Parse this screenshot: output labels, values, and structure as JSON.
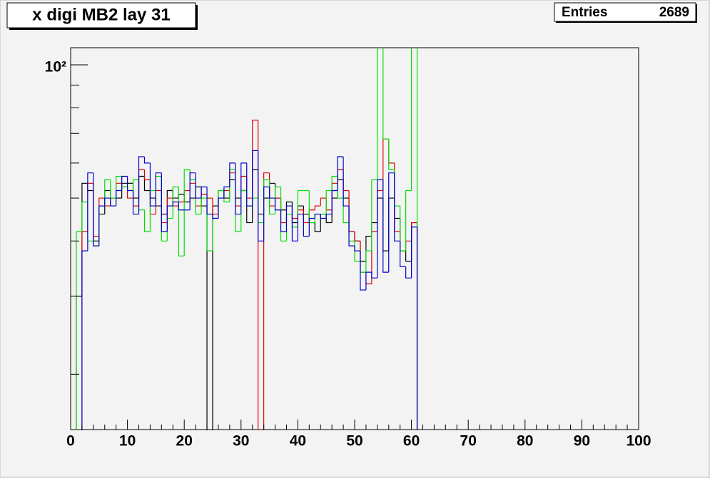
{
  "chart_data": {
    "type": "histogram",
    "title": "x digi MB2 lay 31",
    "stats_label": "Entries",
    "entries": 2689,
    "log_y": true,
    "xlim": [
      0,
      100
    ],
    "xticks": [
      0,
      10,
      20,
      30,
      40,
      50,
      60,
      70,
      80,
      90,
      100
    ],
    "xminor": [
      2,
      4,
      6,
      8,
      12,
      14,
      16,
      18,
      22,
      24,
      26,
      28,
      32,
      34,
      36,
      38,
      42,
      44,
      46,
      48,
      52,
      54,
      56,
      58,
      62,
      64,
      66,
      68,
      72,
      74,
      76,
      78,
      82,
      84,
      86,
      88,
      92,
      94,
      96,
      98
    ],
    "ylim": [
      15,
      109.3
    ],
    "yticks": [
      {
        "value": 100,
        "label": "10²"
      }
    ],
    "yminor": [
      20,
      30,
      40,
      50,
      60,
      70,
      80,
      90
    ],
    "bins": [
      0,
      1,
      2,
      3,
      4,
      5,
      6,
      7,
      8,
      9,
      10,
      11,
      12,
      13,
      14,
      15,
      16,
      17,
      18,
      19,
      20,
      21,
      22,
      23,
      24,
      25,
      26,
      27,
      28,
      29,
      30,
      31,
      32,
      33,
      34,
      35,
      36,
      37,
      38,
      39,
      40,
      41,
      42,
      43,
      44,
      45,
      46,
      47,
      48,
      49,
      50,
      51,
      52,
      53,
      54,
      55,
      56,
      57,
      58,
      59,
      60,
      61,
      62,
      63,
      64,
      65,
      66,
      67,
      68,
      69,
      70,
      71,
      72,
      73,
      74,
      75,
      76,
      77,
      78,
      79,
      80,
      81,
      82,
      83,
      84,
      85,
      86,
      87,
      88,
      89,
      90,
      91,
      92,
      93,
      94,
      95,
      96,
      97,
      98,
      99,
      100
    ],
    "series": [
      {
        "color": "#000000",
        "values": [
          0,
          30,
          54,
          52,
          40,
          46,
          52,
          50,
          50,
          54,
          54,
          50,
          56,
          52,
          50,
          48,
          46,
          52,
          50,
          51,
          49,
          50,
          53,
          48,
          0,
          48,
          52,
          50,
          55,
          50,
          52,
          44,
          58,
          46,
          50,
          54,
          50,
          47,
          49,
          44,
          48,
          46,
          44,
          42,
          46,
          44,
          50,
          55,
          50,
          42,
          40,
          36,
          41,
          44,
          50,
          38,
          50,
          45,
          38,
          36,
          44,
          0,
          0,
          0,
          0,
          0,
          0,
          0,
          0,
          0,
          0,
          0,
          0,
          0,
          0,
          0,
          0,
          0,
          0,
          0,
          0,
          0,
          0,
          0,
          0,
          0,
          0,
          0,
          0,
          0,
          0,
          0,
          0,
          0,
          0,
          0,
          0,
          0,
          0,
          0
        ]
      },
      {
        "color": "#e00000",
        "values": [
          0,
          0,
          42,
          54,
          41,
          50,
          48,
          50,
          54,
          53,
          50,
          48,
          58,
          55,
          46,
          52,
          44,
          50,
          48,
          49,
          52,
          54,
          48,
          51,
          50,
          46,
          50,
          52,
          57,
          48,
          56,
          50,
          75,
          0,
          57,
          48,
          50,
          44,
          46,
          45,
          47,
          44,
          47,
          48,
          50,
          47,
          54,
          58,
          52,
          42,
          40,
          34,
          32,
          42,
          52,
          68,
          60,
          42,
          38,
          40,
          44,
          0,
          0,
          0,
          0,
          0,
          0,
          0,
          0,
          0,
          0,
          0,
          0,
          0,
          0,
          0,
          0,
          0,
          0,
          0,
          0,
          0,
          0,
          0,
          0,
          0,
          0,
          0,
          0,
          0,
          0,
          0,
          0,
          0,
          0,
          0,
          0,
          0,
          0,
          0
        ]
      },
      {
        "color": "#00e000",
        "values": [
          0,
          42,
          49,
          40,
          39,
          48,
          55,
          50,
          56,
          53,
          52,
          55,
          47,
          42,
          52,
          56,
          40,
          45,
          53,
          37,
          58,
          55,
          46,
          50,
          38,
          45,
          52,
          49,
          58,
          42,
          52,
          48,
          50,
          44,
          55,
          46,
          53,
          40,
          46,
          43,
          52,
          52,
          44,
          46,
          46,
          52,
          56,
          50,
          44,
          40,
          36,
          34,
          38,
          55,
          120,
          68,
          58,
          48,
          38,
          52,
          120,
          0,
          0,
          0,
          0,
          0,
          0,
          0,
          0,
          0,
          0,
          0,
          0,
          0,
          0,
          0,
          0,
          0,
          0,
          0,
          0,
          0,
          0,
          0,
          0,
          0,
          0,
          0,
          0,
          0,
          0,
          0,
          0,
          0,
          0,
          0,
          0,
          0,
          0,
          0
        ]
      },
      {
        "color": "#0000d0",
        "values": [
          0,
          0,
          38,
          57,
          39,
          48,
          50,
          48,
          52,
          56,
          52,
          46,
          62,
          60,
          48,
          57,
          42,
          48,
          49,
          47,
          47,
          57,
          50,
          53,
          46,
          45,
          50,
          53,
          60,
          46,
          60,
          48,
          64,
          40,
          53,
          50,
          47,
          42,
          48,
          40,
          46,
          41,
          45,
          46,
          45,
          46,
          52,
          62,
          48,
          39,
          38,
          31,
          34,
          33,
          55,
          34,
          57,
          40,
          35,
          33,
          43,
          0,
          0,
          0,
          0,
          0,
          0,
          0,
          0,
          0,
          0,
          0,
          0,
          0,
          0,
          0,
          0,
          0,
          0,
          0,
          0,
          0,
          0,
          0,
          0,
          0,
          0,
          0,
          0,
          0,
          0,
          0,
          0,
          0,
          0,
          0,
          0,
          0,
          0,
          0
        ]
      }
    ]
  }
}
